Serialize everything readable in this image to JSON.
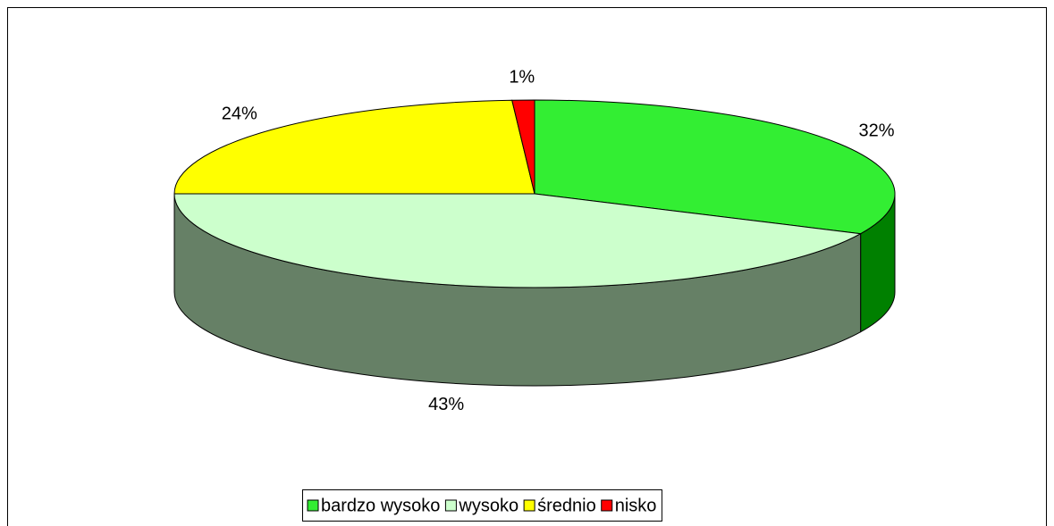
{
  "chart_data": {
    "type": "pie3d",
    "categories": [
      "bardzo wysoko",
      "wysoko",
      "średnio",
      "nisko"
    ],
    "values": [
      32,
      43,
      24,
      1
    ],
    "value_labels": [
      "32%",
      "43%",
      "24%",
      "1%"
    ],
    "colors": [
      "#33ee33",
      "#ccffcc",
      "#ffff00",
      "#ff0000"
    ],
    "side_colors": [
      "#008000",
      "#668066",
      "#808000",
      "#800000"
    ],
    "legend": "bottom"
  }
}
